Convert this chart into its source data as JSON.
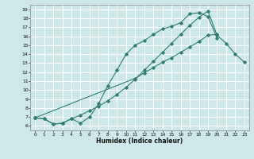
{
  "title": "",
  "xlabel": "Humidex (Indice chaleur)",
  "background_color": "#cde8e8",
  "grid_color": "#ffffff",
  "line_color": "#2e7d6e",
  "xlim": [
    -0.5,
    23.5
  ],
  "ylim": [
    5.5,
    19.5
  ],
  "xticks": [
    0,
    1,
    2,
    3,
    4,
    5,
    6,
    7,
    8,
    9,
    10,
    11,
    12,
    13,
    14,
    15,
    16,
    17,
    18,
    19,
    20,
    21,
    22,
    23
  ],
  "yticks": [
    6,
    7,
    8,
    9,
    10,
    11,
    12,
    13,
    14,
    15,
    16,
    17,
    18,
    19
  ],
  "line1_x": [
    0,
    1,
    2,
    3,
    4,
    5,
    6,
    7,
    8,
    9,
    10,
    11,
    12,
    13,
    14,
    15,
    16,
    17,
    18,
    19,
    20,
    21,
    22,
    23
  ],
  "line1_y": [
    6.9,
    6.8,
    6.2,
    6.3,
    6.8,
    7.2,
    7.7,
    8.2,
    8.8,
    9.5,
    10.3,
    11.2,
    12.2,
    13.2,
    14.2,
    15.2,
    16.2,
    17.2,
    18.1,
    18.8,
    16.1,
    15.2,
    14.0,
    13.1
  ],
  "line2_x": [
    0,
    1,
    2,
    3,
    4,
    5,
    6,
    7,
    8,
    9,
    10,
    11,
    12,
    13,
    14,
    15,
    16,
    17,
    18,
    19,
    20
  ],
  "line2_y": [
    6.9,
    6.8,
    6.2,
    6.3,
    6.8,
    6.3,
    7.0,
    8.5,
    10.5,
    12.2,
    14.0,
    15.0,
    15.5,
    16.2,
    16.8,
    17.1,
    17.5,
    18.5,
    18.6,
    18.2,
    15.8
  ],
  "line3_x": [
    0,
    11,
    12,
    13,
    14,
    15,
    16,
    17,
    18,
    19,
    20
  ],
  "line3_y": [
    6.9,
    11.3,
    11.9,
    12.5,
    13.1,
    13.6,
    14.2,
    14.8,
    15.4,
    16.1,
    16.2
  ]
}
